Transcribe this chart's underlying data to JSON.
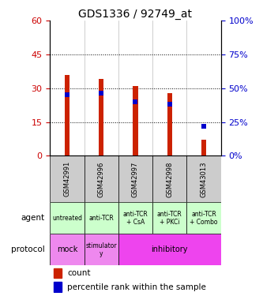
{
  "title": "GDS1336 / 92749_at",
  "samples": [
    "GSM42991",
    "GSM42996",
    "GSM42997",
    "GSM42998",
    "GSM43013"
  ],
  "counts": [
    36,
    34,
    31,
    28,
    7
  ],
  "percentile_ranks_left": [
    27,
    28,
    24,
    23,
    13
  ],
  "ylim_left": [
    0,
    60
  ],
  "ylim_right": [
    0,
    100
  ],
  "yticks_left": [
    0,
    15,
    30,
    45,
    60
  ],
  "yticks_right": [
    0,
    25,
    50,
    75,
    100
  ],
  "bar_color": "#cc2200",
  "pct_color": "#0000cc",
  "bar_width": 0.15,
  "agent_labels": [
    "untreated",
    "anti-TCR",
    "anti-TCR\n+ CsA",
    "anti-TCR\n+ PKCi",
    "anti-TCR\n+ Combo"
  ],
  "agent_bg": "#ccffcc",
  "protocol_bg_mock": "#ee88ee",
  "protocol_bg_stim": "#ee88ee",
  "protocol_bg_inhib": "#ee44ee",
  "tick_label_color_left": "#cc0000",
  "tick_label_color_right": "#0000cc",
  "xticklabels_bg": "#cccccc",
  "legend_count_label": "count",
  "legend_pct_label": "percentile rank within the sample"
}
